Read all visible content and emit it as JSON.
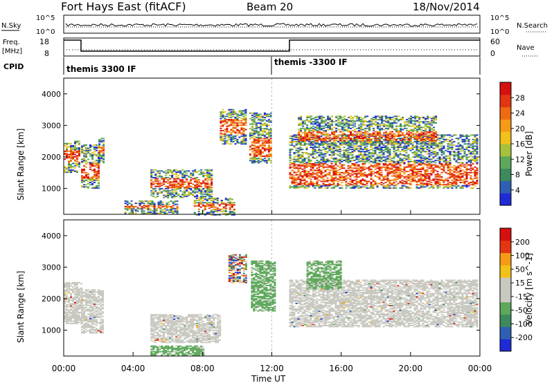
{
  "header": {
    "radar": "Fort Hays East (fitACF)",
    "beam": "Beam 20",
    "date": "18/Nov/2014"
  },
  "top_panels": {
    "nsky_label": "N.Sky",
    "nsky_ticks": [
      "10^5",
      "10^0"
    ],
    "nsearch_label": "N.Search",
    "nsearch_ticks": [
      "10^5",
      "10^0"
    ],
    "freq_label_1": "Freq.",
    "freq_label_2": "[MHz]",
    "freq_ticks": [
      "18",
      "8"
    ],
    "nave_label": "Nave",
    "nave_ticks": [
      "60",
      "0"
    ],
    "cpid_label": "CPID",
    "cpid_1": "themis 3300 IF",
    "cpid_2": "themis -3300 IF"
  },
  "chart_data": [
    {
      "type": "heatmap",
      "name": "power",
      "ylabel": "Slant Range [km]",
      "yticks": [
        "4000",
        "3000",
        "2000",
        "1000"
      ],
      "ylim": [
        180,
        4500
      ],
      "xlim_hours": [
        0,
        24
      ],
      "colorbar_label": "Power [dB]",
      "colorbar_ticks": [
        "28",
        "24",
        "20",
        "16",
        "12",
        "8",
        "4"
      ],
      "colorbar_colors": [
        "#1f2bd6",
        "#2f5fb4",
        "#3c8a5e",
        "#5da85a",
        "#a6c23c",
        "#f2c21b",
        "#f59a14",
        "#ef6a12",
        "#e33512",
        "#d61010"
      ],
      "regions": [
        {
          "t": [
            0.0,
            0.9
          ],
          "r": [
            1500,
            2500
          ],
          "core": [
            1800,
            2200
          ]
        },
        {
          "t": [
            1.0,
            2.0
          ],
          "r": [
            1000,
            2400
          ],
          "core": [
            1300,
            1800
          ]
        },
        {
          "t": [
            2.0,
            2.3
          ],
          "r": [
            1800,
            2600
          ],
          "core": [
            2100,
            2300
          ]
        },
        {
          "t": [
            5.0,
            8.5
          ],
          "r": [
            700,
            1600
          ],
          "core": [
            1000,
            1300
          ]
        },
        {
          "t": [
            3.5,
            6.5
          ],
          "r": [
            200,
            600
          ],
          "core": [
            350,
            450
          ]
        },
        {
          "t": [
            7.5,
            9.8
          ],
          "r": [
            150,
            700
          ],
          "core": [
            300,
            500
          ]
        },
        {
          "t": [
            9.0,
            10.5
          ],
          "r": [
            2400,
            3500
          ],
          "core": [
            2700,
            3200
          ]
        },
        {
          "t": [
            10.7,
            12.0
          ],
          "r": [
            1800,
            3400
          ],
          "core": [
            2000,
            2600
          ]
        },
        {
          "t": [
            13.0,
            23.8
          ],
          "r": [
            1000,
            2700
          ],
          "core": [
            1100,
            1800
          ]
        },
        {
          "t": [
            13.5,
            21.5
          ],
          "r": [
            2400,
            3300
          ],
          "core": [
            2500,
            2800
          ]
        }
      ]
    },
    {
      "type": "heatmap",
      "name": "velocity",
      "ylabel": "Slant Range [km]",
      "yticks": [
        "4000",
        "3000",
        "2000",
        "1000"
      ],
      "ylim": [
        180,
        4500
      ],
      "xlabel": "Time UT",
      "xticks": [
        "00:00",
        "04:00",
        "08:00",
        "12:00",
        "16:00",
        "20:00",
        "00:00"
      ],
      "colorbar_label": "Velocity [m s^-1]",
      "colorbar_ticks": [
        "200",
        "100",
        "50",
        "15",
        "-15",
        "-50",
        "-100",
        "-200"
      ],
      "colorbar_colors": [
        "#1f2bd6",
        "#2f5fb4",
        "#3c8a5e",
        "#5da85a",
        "#c9c9c1",
        "#c9c9c1",
        "#f2c21b",
        "#f59a14",
        "#e33512",
        "#d61010"
      ],
      "regions": [
        {
          "t": [
            0.0,
            1.0
          ],
          "r": [
            1200,
            2500
          ],
          "fill": "ground"
        },
        {
          "t": [
            1.0,
            2.2
          ],
          "r": [
            900,
            2300
          ],
          "fill": "ground"
        },
        {
          "t": [
            5.0,
            9.0
          ],
          "r": [
            600,
            1500
          ],
          "fill": "ground"
        },
        {
          "t": [
            5.0,
            8.0
          ],
          "r": [
            200,
            500
          ],
          "fill": "green"
        },
        {
          "t": [
            9.5,
            10.5
          ],
          "r": [
            2500,
            3400
          ],
          "fill": "mixed"
        },
        {
          "t": [
            10.8,
            12.2
          ],
          "r": [
            1600,
            3200
          ],
          "fill": "green"
        },
        {
          "t": [
            13.0,
            23.9
          ],
          "r": [
            1100,
            2600
          ],
          "fill": "ground"
        },
        {
          "t": [
            14.0,
            16.0
          ],
          "r": [
            2300,
            3200
          ],
          "fill": "green"
        }
      ]
    }
  ]
}
